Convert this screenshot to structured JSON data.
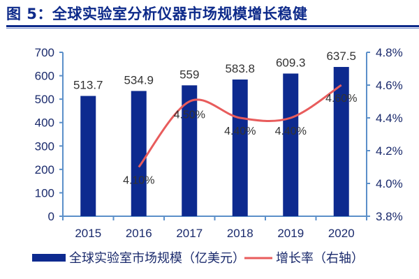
{
  "title": "图 5：全球实验室分析仪器市场规模增长稳健",
  "colors": {
    "bar": "#0d2a8f",
    "line": "#e85c5c",
    "axis": "#5b8fc9",
    "title": "#0d2a8a"
  },
  "chart_data": {
    "type": "bar+line",
    "categories": [
      "2015",
      "2016",
      "2017",
      "2018",
      "2019",
      "2020"
    ],
    "series": [
      {
        "name": "全球实验室市场规模（亿美元）",
        "type": "bar",
        "axis": "left",
        "values": [
          513.7,
          534.9,
          559,
          583.8,
          609.3,
          637.5
        ],
        "labels": [
          "513.7",
          "534.9",
          "559",
          "583.8",
          "609.3",
          "637.5"
        ]
      },
      {
        "name": "增长率（右轴）",
        "type": "line",
        "axis": "right",
        "values": [
          null,
          4.1,
          4.5,
          4.4,
          4.4,
          4.6
        ],
        "labels": [
          "",
          "4.10%",
          "4.50%",
          "4.40%",
          "4.40%",
          "4.60%"
        ]
      }
    ],
    "y_left": {
      "range": [
        0,
        700
      ],
      "ticks": [
        "0",
        "100",
        "200",
        "300",
        "400",
        "500",
        "600",
        "700"
      ]
    },
    "y_right": {
      "range": [
        3.8,
        4.8
      ],
      "ticks": [
        "3.8%",
        "4.0%",
        "4.2%",
        "4.4%",
        "4.6%",
        "4.8%"
      ]
    },
    "grid": false,
    "legend": "bottom"
  }
}
